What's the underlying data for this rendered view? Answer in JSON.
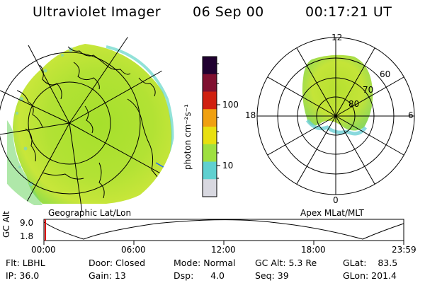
{
  "header": {
    "instrument": "Ultraviolet Imager",
    "date": "06 Sep 00",
    "time": "00:17:21 UT"
  },
  "globe_panel": {
    "label": "Geographic Lat/Lon"
  },
  "polar_panel": {
    "label": "Apex MLat/MLT",
    "mlt_labels": {
      "top": "12",
      "left": "18",
      "right": "6",
      "bottom": "0"
    },
    "lat_labels": [
      "60",
      "70",
      "80"
    ]
  },
  "colorbar": {
    "unit_label": "photon cm⁻²s⁻¹",
    "ticks": [
      "100",
      "10"
    ],
    "colors": [
      "#d8d8e0",
      "#5fd0d0",
      "#9ee040",
      "#e8e010",
      "#f0a010",
      "#d02010",
      "#801030",
      "#200030"
    ]
  },
  "altitude_plot": {
    "ylabel": "GC Alt",
    "yticks": [
      "9.0",
      "1.8"
    ],
    "xticks": [
      "00:00",
      "06:00",
      "12:00",
      "18:00",
      "23:59"
    ]
  },
  "info": {
    "flt": "Flt: LBHL",
    "ip": "IP: 36.0",
    "door": "Door: Closed",
    "gain": "Gain: 13",
    "mode": "Mode: Normal",
    "dsp": "Dsp:      4.0",
    "gc_alt": "GC Alt: 5.3 Re",
    "seq": "Seq: 39",
    "glat": "GLat:    83.5",
    "glon": "GLon: 201.4"
  }
}
